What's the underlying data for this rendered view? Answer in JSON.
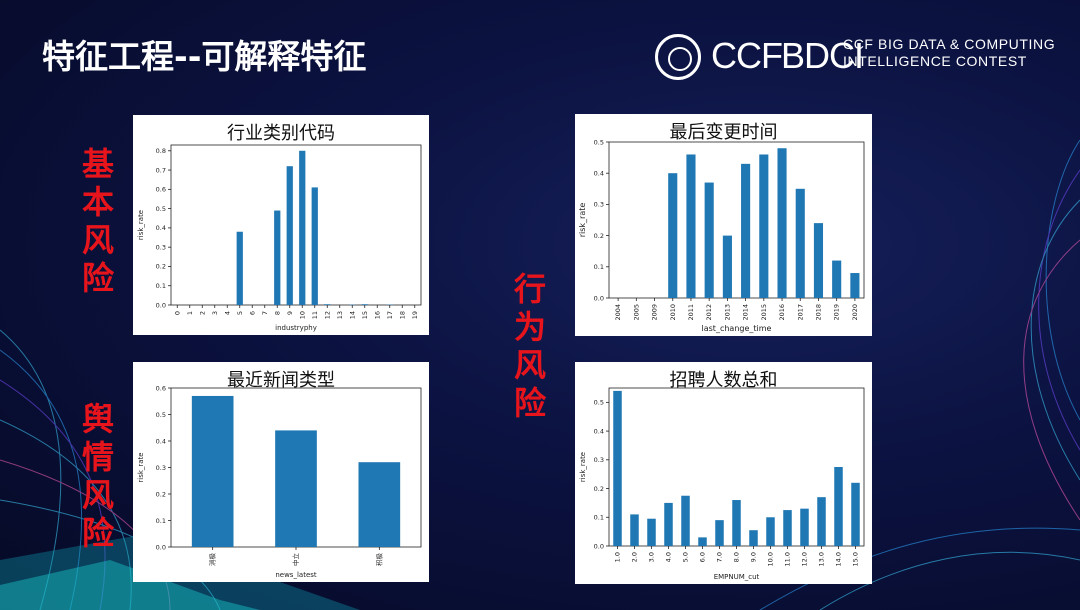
{
  "slide": {
    "title": "特征工程--可解释特征"
  },
  "logo": {
    "ccf": "CCF",
    "bdci": "BDCI",
    "line1": "CCF BIG DATA & COMPUTING",
    "line2": "INTELLIGENCE CONTEST"
  },
  "side_labels": {
    "basic_risk": "基本风险",
    "opinion_risk": "舆情风险",
    "behavior_risk": "行为风险"
  },
  "colors": {
    "bar": "#1f77b4",
    "side_label": "#e8141c",
    "background": "#0b1240"
  },
  "chart_data": [
    {
      "type": "bar",
      "title": "行业类别代码",
      "xlabel": "industryphy",
      "ylabel": "risk_rate",
      "ylim": [
        0,
        0.83
      ],
      "yticks": [
        "0.0",
        "0.1",
        "0.2",
        "0.3",
        "0.4",
        "0.5",
        "0.6",
        "0.7",
        "0.8"
      ],
      "categories": [
        "0",
        "1",
        "2",
        "3",
        "4",
        "5",
        "6",
        "7",
        "8",
        "9",
        "10",
        "11",
        "12",
        "13",
        "14",
        "15",
        "16",
        "17",
        "18",
        "19"
      ],
      "values": [
        0,
        0,
        0,
        0,
        0,
        0.38,
        0,
        0,
        0.49,
        0.72,
        0.8,
        0.61,
        0.004,
        0,
        0.002,
        0.004,
        0,
        0.002,
        0,
        0
      ],
      "grid": false
    },
    {
      "type": "bar",
      "title": "最后变更时间",
      "xlabel": "last_change_time",
      "ylabel": "risk_rate",
      "ylim": [
        0,
        0.5
      ],
      "yticks": [
        "0.0",
        "0.1",
        "0.2",
        "0.3",
        "0.4",
        "0.5"
      ],
      "categories": [
        "2004",
        "2005",
        "2009",
        "2010",
        "2011",
        "2012",
        "2013",
        "2014",
        "2015",
        "2016",
        "2017",
        "2018",
        "2019",
        "2020"
      ],
      "values": [
        0,
        0,
        0,
        0.4,
        0.46,
        0.37,
        0.2,
        0.43,
        0.46,
        0.48,
        0.35,
        0.24,
        0.12,
        0.08
      ],
      "grid": false
    },
    {
      "type": "bar",
      "title": "最近新闻类型",
      "xlabel": "news_latest",
      "ylabel": "risk_rate",
      "ylim": [
        0,
        0.6
      ],
      "yticks": [
        "0.0",
        "0.1",
        "0.2",
        "0.3",
        "0.4",
        "0.5",
        "0.6"
      ],
      "categories": [
        "消极",
        "中立",
        "积极"
      ],
      "values": [
        0.57,
        0.44,
        0.32
      ],
      "grid": false
    },
    {
      "type": "bar",
      "title": "招聘人数总和",
      "xlabel": "EMPNUM_cut",
      "ylabel": "risk_rate",
      "ylim": [
        0,
        0.55
      ],
      "yticks": [
        "0.0",
        "0.1",
        "0.2",
        "0.3",
        "0.4",
        "0.5"
      ],
      "categories": [
        "1.0",
        "2.0",
        "3.0",
        "4.0",
        "5.0",
        "6.0",
        "7.0",
        "8.0",
        "9.0",
        "10.0",
        "11.0",
        "12.0",
        "13.0",
        "14.0",
        "15.0"
      ],
      "values": [
        0.54,
        0.11,
        0.095,
        0.15,
        0.175,
        0.03,
        0.09,
        0.16,
        0.055,
        0.1,
        0.125,
        0.13,
        0.17,
        0.275,
        0.22
      ],
      "grid": false
    }
  ]
}
